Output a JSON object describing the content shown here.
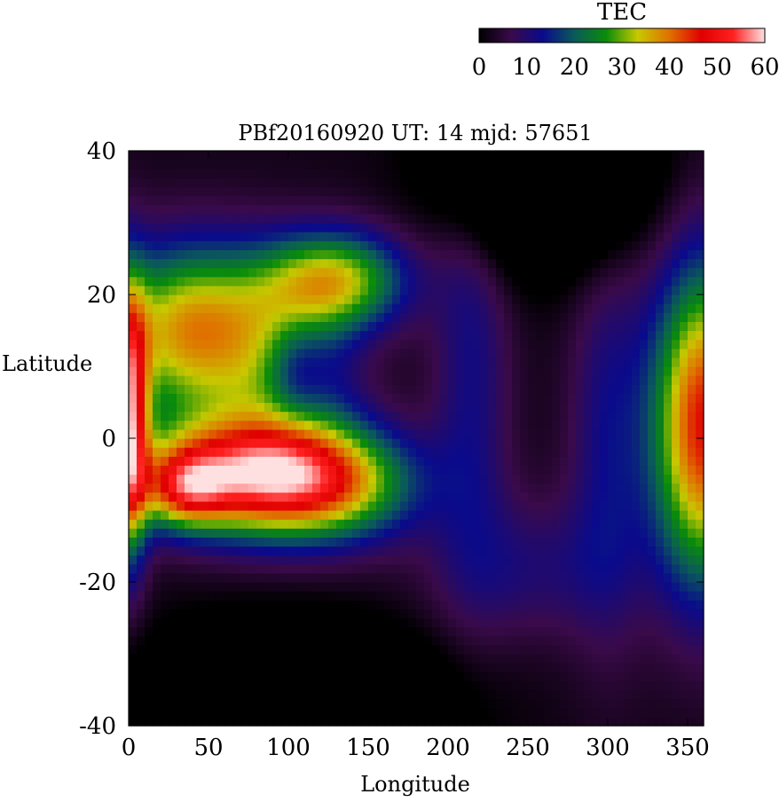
{
  "chart_data": {
    "type": "heatmap",
    "title": "PBf20160920  UT: 14  mjd: 57651",
    "xlabel": "Longitude",
    "ylabel": "Latitude",
    "xlim": [
      0,
      360
    ],
    "ylim": [
      -40,
      40
    ],
    "x_ticks": [
      "0",
      "50",
      "100",
      "150",
      "200",
      "250",
      "300",
      "350"
    ],
    "y_ticks": [
      "-40",
      "-20",
      "0",
      "20",
      "40"
    ],
    "colorbar": {
      "label": "TEC",
      "range": [
        0,
        60
      ],
      "ticks": [
        "0",
        "10",
        "20",
        "30",
        "40",
        "50",
        "60"
      ],
      "palette": [
        "#000000",
        "#3a0a4a",
        "#0a0a8c",
        "#0a5a5a",
        "#0a8c0a",
        "#c8c800",
        "#e07000",
        "#e00000",
        "#ff2020",
        "#ffe0e0"
      ]
    },
    "features": [
      {
        "lon": 45,
        "lat": -5,
        "tec": 55
      },
      {
        "lon": 100,
        "lat": 10,
        "tec": 18
      },
      {
        "lon": 350,
        "lat": 0,
        "tec": 48
      },
      {
        "lon": 250,
        "lat": 38,
        "tec": 0
      },
      {
        "lon": 100,
        "lat": -36,
        "tec": 0
      }
    ]
  }
}
